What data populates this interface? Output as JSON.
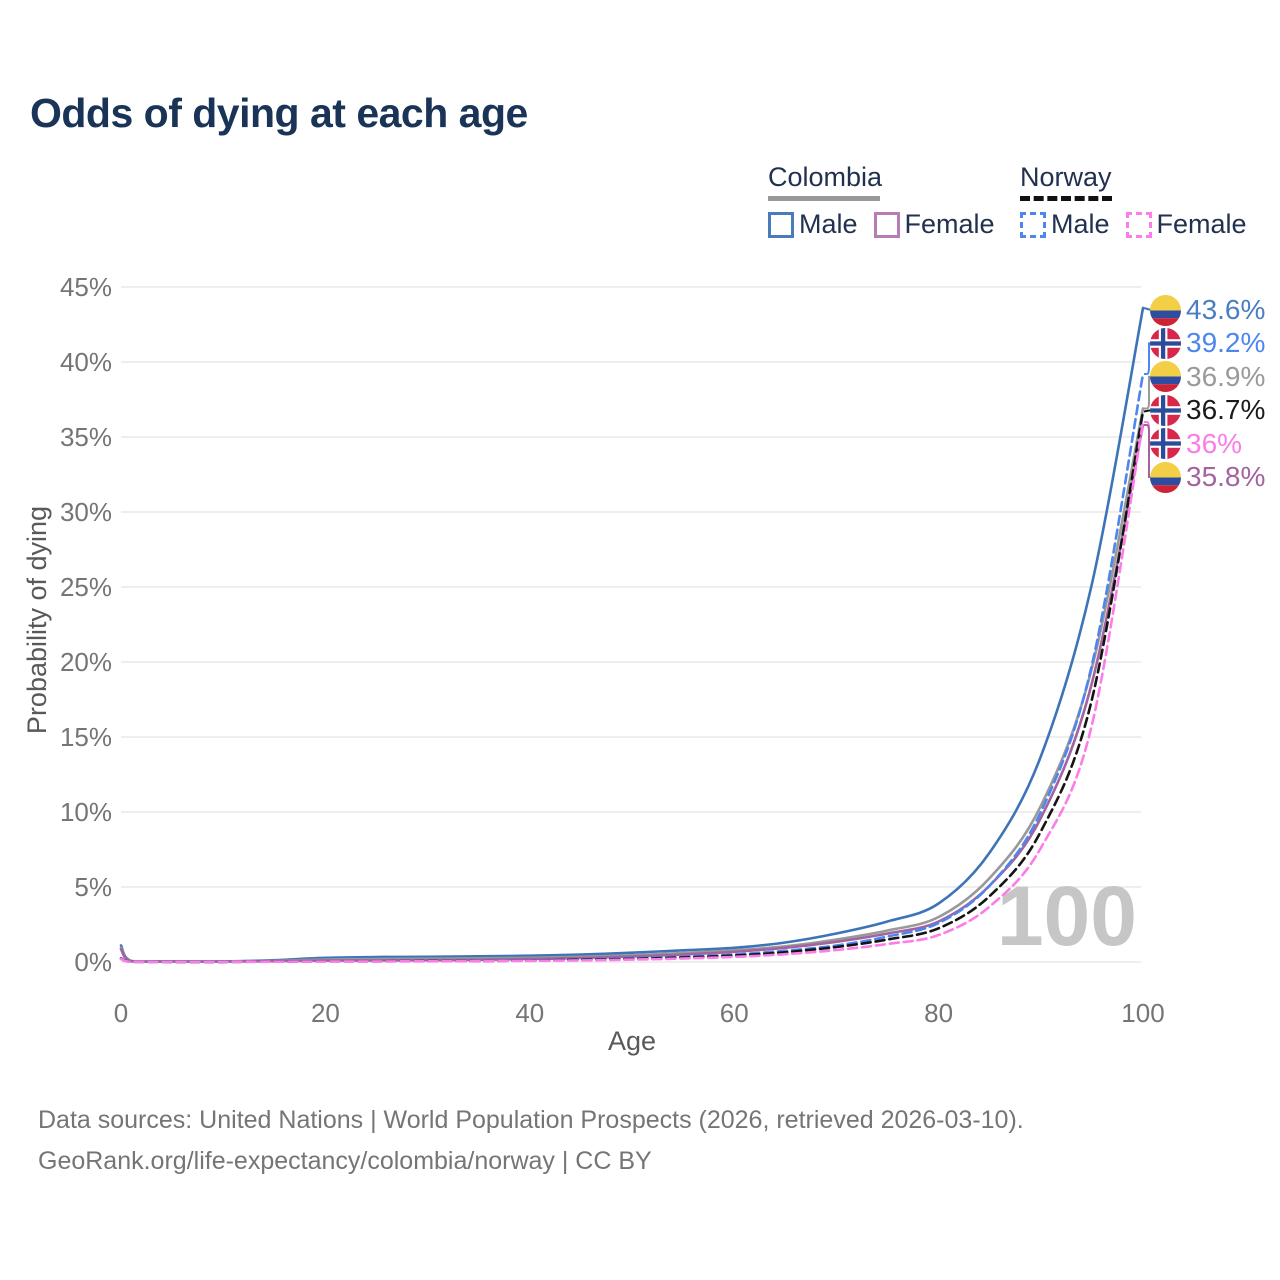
{
  "title": "Odds of dying at each age",
  "legend": {
    "colombia": {
      "name": "Colombia",
      "underline_color": "#999999",
      "male_label": "Male",
      "female_label": "Female",
      "male_color": "#4a7cbb",
      "female_color": "#b77cb5"
    },
    "norway": {
      "name": "Norway",
      "underline_color": "#111111",
      "male_label": "Male",
      "female_label": "Female",
      "male_color": "#4d86ee",
      "female_color": "#fc7ce8"
    }
  },
  "chart_data": {
    "type": "line",
    "title": "Odds of dying at each age",
    "xlabel": "Age",
    "ylabel": "Probability of dying",
    "watermark": "100",
    "xlim": [
      0,
      100
    ],
    "ylim": [
      0,
      45
    ],
    "x_ticks": [
      0,
      20,
      40,
      60,
      80,
      100
    ],
    "y_ticks": [
      0,
      5,
      10,
      15,
      20,
      25,
      30,
      35,
      40,
      45
    ],
    "y_tick_suffix": "%",
    "grid": "horizontal",
    "grid_color": "#e8e8e8",
    "axis_text_color": "#757575",
    "axis_title_color": "#595959",
    "watermark_color": "#c6c6c6",
    "x": [
      0,
      1,
      5,
      10,
      15,
      20,
      25,
      30,
      35,
      40,
      45,
      50,
      55,
      60,
      65,
      70,
      75,
      80,
      85,
      90,
      95,
      100
    ],
    "series": [
      {
        "name": "Colombia Male",
        "country": "colombia",
        "sex": "male",
        "color": "#3d74b8",
        "dashed": false,
        "end_label": "43.6%",
        "label_color": "#4a7dc4",
        "values": [
          1.1,
          0.07,
          0.04,
          0.04,
          0.12,
          0.28,
          0.33,
          0.35,
          0.38,
          0.42,
          0.5,
          0.62,
          0.78,
          0.95,
          1.3,
          1.9,
          2.7,
          3.9,
          7.3,
          13.7,
          25.2,
          43.6
        ]
      },
      {
        "name": "Colombia Total",
        "country": "colombia",
        "sex": "total",
        "color": "#999999",
        "dashed": false,
        "end_label": "36.9%",
        "label_color": "#9a9a9a",
        "values": [
          0.95,
          0.06,
          0.03,
          0.03,
          0.08,
          0.17,
          0.2,
          0.22,
          0.25,
          0.28,
          0.35,
          0.45,
          0.6,
          0.78,
          1.05,
          1.5,
          2.1,
          3.0,
          5.6,
          10.4,
          19.6,
          36.9
        ]
      },
      {
        "name": "Colombia Female",
        "country": "colombia",
        "sex": "female",
        "color": "#a2639e",
        "dashed": false,
        "end_label": "35.8%",
        "label_color": "#a2639e",
        "values": [
          0.85,
          0.05,
          0.03,
          0.03,
          0.06,
          0.09,
          0.1,
          0.12,
          0.15,
          0.2,
          0.27,
          0.37,
          0.5,
          0.68,
          0.95,
          1.35,
          1.9,
          2.7,
          5.1,
          9.6,
          18.6,
          35.8
        ]
      },
      {
        "name": "Norway Male",
        "country": "norway",
        "sex": "male",
        "color": "#4d86ee",
        "dashed": true,
        "end_label": "39.2%",
        "label_color": "#4d86ee",
        "values": [
          0.25,
          0.02,
          0.01,
          0.01,
          0.03,
          0.06,
          0.07,
          0.08,
          0.09,
          0.12,
          0.18,
          0.25,
          0.35,
          0.5,
          0.75,
          1.1,
          1.7,
          2.6,
          5.1,
          10.0,
          19.8,
          39.2
        ]
      },
      {
        "name": "Norway Total",
        "country": "norway",
        "sex": "total",
        "color": "#141414",
        "dashed": true,
        "end_label": "36.7%",
        "label_color": "#1a1a1a",
        "values": [
          0.22,
          0.02,
          0.01,
          0.01,
          0.025,
          0.045,
          0.05,
          0.06,
          0.07,
          0.1,
          0.15,
          0.21,
          0.3,
          0.43,
          0.65,
          1.0,
          1.5,
          2.25,
          4.4,
          8.7,
          17.5,
          36.7
        ]
      },
      {
        "name": "Norway Female",
        "country": "norway",
        "sex": "female",
        "color": "#fc7ce8",
        "dashed": true,
        "end_label": "36%",
        "label_color": "#fb7ce8",
        "values": [
          0.2,
          0.015,
          0.01,
          0.01,
          0.02,
          0.035,
          0.04,
          0.05,
          0.06,
          0.08,
          0.11,
          0.16,
          0.23,
          0.34,
          0.52,
          0.8,
          1.2,
          1.8,
          3.7,
          7.6,
          15.8,
          36.0
        ]
      }
    ],
    "flag_colors": {
      "colombia_yellow": "#f2cf46",
      "colombia_blue": "#2c4da0",
      "colombia_red": "#ce2335",
      "norway_red": "#d7284b",
      "norway_blue": "#2b4c9b",
      "norway_white": "#ffffff"
    }
  },
  "footer": {
    "line1": "Data sources: United Nations | World Population Prospects (2026, retrieved 2026-03-10).",
    "line2": "GeoRank.org/life-expectancy/colombia/norway | CC BY"
  }
}
